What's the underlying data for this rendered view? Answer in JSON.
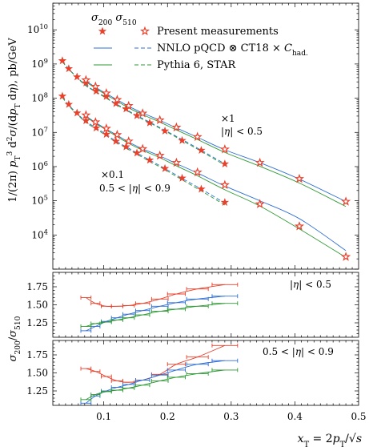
{
  "chart_data": [
    {
      "type": "scatter",
      "xlabel": "x_T = 2p_T/√s",
      "ylabel": "1/(2π) p_T^3 d^2σ/(dp_T dη), pb/GeV",
      "yscale": "log",
      "xlim": [
        0.02,
        0.5
      ],
      "ylim": [
        1000,
        60000000000
      ],
      "xticks": [
        "0.1",
        "0.2",
        "0.3",
        "0.4",
        "0.5"
      ],
      "yticks": [
        "10^4",
        "10^5",
        "10^6",
        "10^7",
        "10^8",
        "10^9",
        "10^10"
      ],
      "legend_position": "top-left",
      "legend_header": [
        "σ_200",
        "σ_510"
      ],
      "legend": [
        "Present measurements",
        "NNLO pQCD ⊗ CT18 × C_had.",
        "Pythia 6, STAR"
      ],
      "annotations": [
        {
          "lines": [
            "×1",
            "|η| < 0.5"
          ]
        },
        {
          "lines": [
            "×0.1",
            "0.5 < |η| < 0.9"
          ]
        }
      ],
      "series": [
        {
          "group": "|η| < 0.5",
          "name": "σ_200",
          "marker": "filled-star",
          "x": [
            0.035,
            0.045,
            0.058,
            0.072,
            0.088,
            0.104,
            0.119,
            0.135,
            0.152,
            0.172,
            0.196,
            0.223,
            0.253,
            0.29
          ],
          "y": [
            1250000000,
            730000000,
            420000000,
            280000000,
            160000000,
            113000000,
            70000000,
            49000000,
            31000000,
            19000000,
            11000000,
            5800000,
            3000000,
            1200000
          ],
          "nnlo": [
            1200000000,
            720000000,
            410000000,
            240000000,
            155000000,
            104000000,
            69000000,
            47000000,
            31000000,
            20000000,
            11500000,
            6200000,
            3000000,
            1200000
          ],
          "pythia": [
            1150000000,
            700000000,
            400000000,
            230000000,
            150000000,
            100000000,
            66000000,
            45000000,
            29500000,
            19000000,
            11000000,
            5800000,
            2800000,
            1100000
          ]
        },
        {
          "group": "|η| < 0.5",
          "name": "σ_510",
          "marker": "open-star",
          "x": [
            0.072,
            0.087,
            0.104,
            0.121,
            0.139,
            0.161,
            0.188,
            0.214,
            0.247,
            0.29,
            0.345,
            0.407,
            0.48
          ],
          "y": [
            340000000,
            220000000,
            140000000,
            90000000,
            60000000,
            36000000,
            23000000,
            14000000,
            7400000,
            3200000,
            1300000,
            440000,
            95000
          ],
          "nnlo": [
            320000000,
            210000000,
            135000000,
            90000000,
            58000000,
            37000000,
            22500000,
            13500000,
            7200000,
            3100000,
            1300000,
            430000,
            95000
          ],
          "pythia": [
            300000000,
            195000000,
            125000000,
            82000000,
            52000000,
            33000000,
            20000000,
            11800000,
            6200000,
            2600000,
            1020000,
            330000,
            68000
          ]
        },
        {
          "group": "0.5 < |η| < 0.9 (×0.1)",
          "name": "σ_200",
          "marker": "filled-star",
          "x": [
            0.035,
            0.045,
            0.058,
            0.072,
            0.088,
            0.104,
            0.119,
            0.135,
            0.152,
            0.172,
            0.196,
            0.223,
            0.253,
            0.29
          ],
          "y": [
            115000000,
            66000000,
            37000000,
            22000000,
            13500000,
            8800000,
            5500000,
            3800000,
            2500000,
            1550000,
            880000,
            460000,
            220000,
            90000
          ],
          "nnlo": [
            108000000,
            63000000,
            36000000,
            21000000,
            13500000,
            8700000,
            5600000,
            3800000,
            2500000,
            1550000,
            880000,
            450000,
            220000,
            85000
          ],
          "pythia": [
            105000000,
            60000000,
            34000000,
            19500000,
            12500000,
            8000000,
            5200000,
            3500000,
            2300000,
            1420000,
            810000,
            410000,
            195000,
            75000
          ]
        },
        {
          "group": "0.5 < |η| < 0.9 (×0.1)",
          "name": "σ_510",
          "marker": "open-star",
          "x": [
            0.072,
            0.087,
            0.104,
            0.121,
            0.139,
            0.161,
            0.188,
            0.214,
            0.247,
            0.29,
            0.345,
            0.407,
            0.48
          ],
          "y": [
            32000000,
            20000000,
            13000000,
            8500000,
            5500000,
            3300000,
            2100000,
            1300000,
            680000,
            290000,
            80000,
            18000,
            2300
          ],
          "nnlo": [
            30000000,
            19500000,
            12500000,
            8200000,
            5200000,
            3300000,
            2050000,
            1220000,
            650000,
            270000,
            100000,
            30000,
            3500
          ],
          "pythia": [
            29000000,
            18500000,
            11800000,
            7500000,
            4800000,
            3000000,
            1820000,
            1050000,
            540000,
            210000,
            70000,
            15000,
            2200
          ]
        }
      ]
    },
    {
      "type": "line",
      "xlabel": "x_T = 2p_T/√s",
      "ylabel": "σ_200/σ_510",
      "ylim": [
        1.05,
        1.95
      ],
      "yticks": [
        "1.25",
        "1.50",
        "1.75"
      ],
      "annotation": "|η| < 0.5",
      "series": [
        {
          "name": "Present measurements",
          "color": "#e8412c",
          "x": [
            0.072,
            0.087,
            0.104,
            0.121,
            0.139,
            0.161,
            0.188,
            0.214,
            0.247,
            0.29
          ],
          "y": [
            1.6,
            1.52,
            1.48,
            1.48,
            1.49,
            1.52,
            1.58,
            1.65,
            1.72,
            1.78
          ],
          "xerr": [
            0.008,
            0.007,
            0.008,
            0.009,
            0.009,
            0.011,
            0.013,
            0.014,
            0.017,
            0.02
          ]
        },
        {
          "name": "NNLO pQCD ⊗ CT18 × C_had.",
          "color": "#2f6fd6",
          "x": [
            0.072,
            0.087,
            0.104,
            0.121,
            0.139,
            0.161,
            0.188,
            0.214,
            0.247,
            0.29
          ],
          "y": [
            1.14,
            1.2,
            1.27,
            1.32,
            1.37,
            1.42,
            1.48,
            1.53,
            1.58,
            1.62
          ],
          "xerr": [
            0.008,
            0.007,
            0.008,
            0.009,
            0.009,
            0.011,
            0.013,
            0.014,
            0.017,
            0.02
          ]
        },
        {
          "name": "Pythia 6, STAR",
          "color": "#2f9a35",
          "x": [
            0.072,
            0.087,
            0.104,
            0.121,
            0.139,
            0.161,
            0.188,
            0.214,
            0.247,
            0.29
          ],
          "y": [
            1.2,
            1.24,
            1.26,
            1.29,
            1.32,
            1.36,
            1.41,
            1.44,
            1.48,
            1.52
          ],
          "xerr": [
            0.008,
            0.007,
            0.008,
            0.009,
            0.009,
            0.011,
            0.013,
            0.014,
            0.017,
            0.02
          ]
        }
      ]
    },
    {
      "type": "line",
      "xlabel": "x_T = 2p_T/√s",
      "ylabel": "σ_200/σ_510",
      "ylim": [
        1.05,
        1.95
      ],
      "yticks": [
        "1.25",
        "1.50",
        "1.75"
      ],
      "annotation": "0.5 < |η| < 0.9",
      "series": [
        {
          "name": "Present measurements",
          "color": "#e8412c",
          "x": [
            0.072,
            0.087,
            0.104,
            0.121,
            0.139,
            0.161,
            0.188,
            0.214,
            0.247,
            0.29
          ],
          "y": [
            1.56,
            1.52,
            1.45,
            1.39,
            1.37,
            1.4,
            1.48,
            1.62,
            1.72,
            1.88
          ],
          "xerr": [
            0.008,
            0.007,
            0.008,
            0.009,
            0.009,
            0.011,
            0.013,
            0.014,
            0.017,
            0.02
          ]
        },
        {
          "name": "NNLO pQCD ⊗ CT18 × C_had.",
          "color": "#2f6fd6",
          "x": [
            0.072,
            0.087,
            0.104,
            0.121,
            0.139,
            0.161,
            0.188,
            0.214,
            0.247,
            0.29
          ],
          "y": [
            1.08,
            1.18,
            1.25,
            1.3,
            1.34,
            1.4,
            1.47,
            1.54,
            1.62,
            1.67
          ],
          "xerr": [
            0.008,
            0.007,
            0.008,
            0.009,
            0.009,
            0.011,
            0.013,
            0.014,
            0.017,
            0.02
          ]
        },
        {
          "name": "Pythia 6, STAR",
          "color": "#2f9a35",
          "x": [
            0.072,
            0.087,
            0.104,
            0.121,
            0.139,
            0.161,
            0.188,
            0.214,
            0.247,
            0.29
          ],
          "y": [
            1.13,
            1.2,
            1.24,
            1.26,
            1.29,
            1.33,
            1.39,
            1.44,
            1.49,
            1.54
          ],
          "xerr": [
            0.008,
            0.007,
            0.008,
            0.009,
            0.009,
            0.011,
            0.013,
            0.014,
            0.017,
            0.02
          ]
        }
      ]
    }
  ]
}
